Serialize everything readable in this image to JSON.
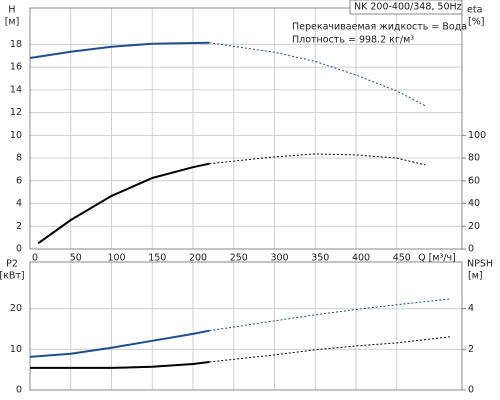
{
  "chart_data": [
    {
      "type": "line",
      "title": "NK 200-400/348, 50Hz",
      "annotations": [
        "Перекачиваемая жидкость = Вода",
        "Плотность = 998.2 кг/м³"
      ],
      "ylabel_unit": "[м]",
      "y2label_unit": "[%]",
      "xlabel": "Q [м³/ч]",
      "xlim": [
        0,
        530
      ],
      "xticks": [
        0,
        50,
        100,
        150,
        200,
        250,
        300,
        350,
        400,
        450
      ],
      "ylim": [
        0,
        21.2
      ],
      "yticks": [
        0,
        2,
        4,
        6,
        8,
        10,
        12,
        14,
        16,
        18
      ],
      "y2lim": [
        0,
        212
      ],
      "y2ticks": [
        0,
        20,
        40,
        60,
        80,
        100
      ],
      "grid": true,
      "solid_to": 220,
      "series": [
        {
          "name": "H",
          "color": "#1f4e8c",
          "x": [
            0,
            50,
            100,
            150,
            220,
            300,
            350,
            400,
            450,
            485
          ],
          "values": [
            16.8,
            17.35,
            17.8,
            18.06,
            18.15,
            17.3,
            16.5,
            15.3,
            13.9,
            12.6
          ]
        },
        {
          "name": "eta",
          "color": "#000000",
          "axis": "y2",
          "x": [
            10,
            50,
            100,
            150,
            200,
            220,
            300,
            350,
            400,
            450,
            485
          ],
          "values": [
            5,
            25.5,
            46.7,
            62.5,
            72,
            75,
            81,
            83.7,
            82.8,
            80,
            74
          ]
        }
      ]
    },
    {
      "type": "line",
      "ylabel_unit": "[кВт]",
      "y2label_unit": "[м]",
      "xlim": [
        0,
        530
      ],
      "ylim": [
        0,
        31.5
      ],
      "yticks": [
        0,
        10,
        20
      ],
      "y2lim": [
        0,
        6.3
      ],
      "y2ticks": [
        0,
        2,
        4
      ],
      "grid": true,
      "solid_to": 220,
      "series": [
        {
          "name": "P2",
          "color": "#1f4e8c",
          "x": [
            0,
            50,
            100,
            150,
            200,
            220,
            300,
            350,
            400,
            450,
            515
          ],
          "values": [
            8.15,
            8.9,
            10.4,
            12.1,
            13.8,
            14.6,
            17.0,
            18.5,
            19.8,
            21.0,
            22.4
          ]
        },
        {
          "name": "NPSH",
          "color": "#000000",
          "axis": "y2",
          "x": [
            0,
            100,
            150,
            200,
            220,
            300,
            350,
            400,
            450,
            515
          ],
          "values": [
            1.09,
            1.09,
            1.14,
            1.28,
            1.38,
            1.73,
            1.98,
            2.17,
            2.32,
            2.62
          ]
        }
      ]
    }
  ]
}
